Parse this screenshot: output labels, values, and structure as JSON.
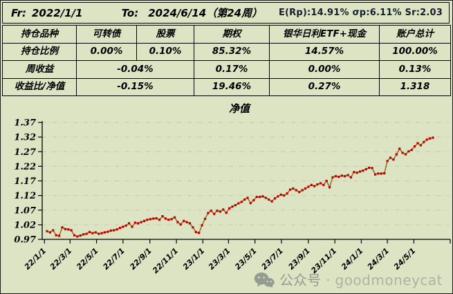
{
  "header": {
    "fr_label": "Fr:",
    "fr_value": "2022/1/1",
    "to_label": "To:",
    "to_value": "2024/6/14（第24周）",
    "stats": "E(Rp):14.91%  σp:6.11%  Sr:2.03"
  },
  "table": {
    "columns": [
      "持仓品种",
      "可转债",
      "股票",
      "期权",
      "银华日利ETF+现金",
      "账户总计"
    ],
    "rows": [
      {
        "label": "持仓比例",
        "merged": false,
        "cells": [
          "0.00%",
          "0.10%",
          "85.32%",
          "14.57%",
          "100.00%"
        ]
      },
      {
        "label": "周收益",
        "merged": true,
        "cells": [
          "-0.04%",
          "0.17%",
          "0.00%",
          "0.13%"
        ]
      },
      {
        "label": "收益比/净值",
        "merged": true,
        "cells": [
          "-0.15%",
          "19.46%",
          "0.27%",
          "1.318"
        ]
      }
    ]
  },
  "chart_data": {
    "type": "line",
    "title": "净值",
    "xlabel": "",
    "ylabel": "",
    "frequency": "weekly",
    "start_date": "22/1/7",
    "end_date": "24/6/14",
    "ylim": [
      0.97,
      1.37
    ],
    "y_ticks": [
      0.97,
      1.02,
      1.07,
      1.12,
      1.17,
      1.22,
      1.27,
      1.32,
      1.37
    ],
    "x_tick_labels": [
      "22/1/1",
      "22/3/1",
      "22/5/1",
      "22/7/1",
      "22/9/1",
      "22/11/1",
      "23/1/1",
      "23/3/1",
      "23/5/1",
      "23/7/1",
      "23/9/1",
      "23/11/1",
      "24/1/1",
      "24/3/1",
      "24/5/1"
    ],
    "grid": true,
    "legend": "none",
    "line_color": "#8f6b1d",
    "marker_color": "#c00000",
    "series": [
      {
        "name": "净值",
        "values": [
          0.998,
          0.994,
          1.001,
          0.984,
          0.982,
          1.011,
          1.005,
          1.004,
          1.001,
          0.984,
          0.98,
          0.983,
          0.987,
          0.989,
          0.995,
          0.991,
          0.994,
          0.989,
          0.991,
          0.994,
          0.996,
          1.0,
          1.001,
          1.004,
          1.009,
          1.013,
          1.017,
          1.025,
          1.013,
          1.027,
          1.025,
          1.029,
          1.033,
          1.037,
          1.039,
          1.041,
          1.042,
          1.037,
          1.049,
          1.041,
          1.037,
          1.039,
          1.045,
          1.029,
          1.021,
          1.033,
          1.029,
          1.025,
          1.011,
          0.995,
          0.992,
          1.018,
          1.04,
          1.06,
          1.068,
          1.057,
          1.068,
          1.065,
          1.072,
          1.061,
          1.076,
          1.082,
          1.087,
          1.093,
          1.098,
          1.106,
          1.112,
          1.094,
          1.104,
          1.115,
          1.115,
          1.117,
          1.112,
          1.106,
          1.1,
          1.11,
          1.117,
          1.123,
          1.12,
          1.127,
          1.14,
          1.144,
          1.138,
          1.132,
          1.138,
          1.144,
          1.15,
          1.156,
          1.152,
          1.158,
          1.162,
          1.156,
          1.17,
          1.148,
          1.182,
          1.186,
          1.184,
          1.188,
          1.186,
          1.19,
          1.182,
          1.2,
          1.198,
          1.202,
          1.205,
          1.21,
          1.215,
          1.214,
          1.192,
          1.195,
          1.195,
          1.196,
          1.238,
          1.249,
          1.243,
          1.261,
          1.28,
          1.266,
          1.261,
          1.271,
          1.276,
          1.288,
          1.299,
          1.292,
          1.303,
          1.311,
          1.315,
          1.318
        ]
      }
    ]
  },
  "watermark": {
    "label": "公众号",
    "separator": "·",
    "handle": "goodmoneycat",
    "icon": "wechat-icon"
  },
  "colors": {
    "background": "#dce4c4",
    "grid": "#c2c9a6",
    "axis": "#000000"
  }
}
